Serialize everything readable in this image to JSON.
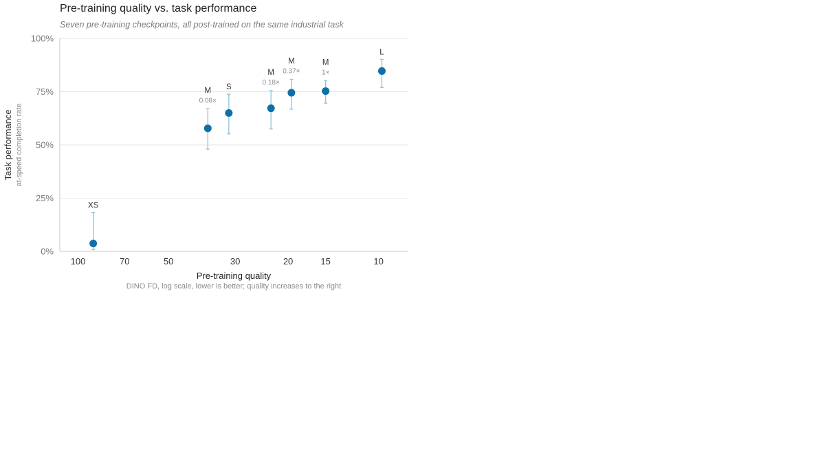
{
  "chart_data": {
    "type": "scatter",
    "title": "Pre-training quality vs. task performance",
    "subtitle": "Seven pre-training checkpoints, all post-trained on the same industrial task",
    "xlabel": "Pre-training quality",
    "xsublabel": "DINO FD, log scale, lower is better; quality increases to the right",
    "ylabel": "Task performance",
    "ysublabel": "at-speed completion rate",
    "x_scale": "log",
    "x_reversed": true,
    "xlim": [
      115,
      8
    ],
    "x_ticks": [
      100,
      70,
      50,
      30,
      20,
      15,
      10
    ],
    "x_tick_labels": [
      "100",
      "70",
      "50",
      "30",
      "20",
      "15",
      "10"
    ],
    "ylim": [
      0,
      100
    ],
    "y_ticks": [
      0,
      25,
      50,
      75,
      100
    ],
    "y_tick_labels": [
      "0%",
      "25%",
      "50%",
      "75%",
      "100%"
    ],
    "grid": "horizontal",
    "color": "#0f6fa8",
    "error_bar_color": "#8ec3de",
    "points": [
      {
        "label": "XS",
        "sublabel": "",
        "x": 89,
        "y": 3.7,
        "y_low": 0.8,
        "y_high": 18.2
      },
      {
        "label": "M",
        "sublabel": "0.08×",
        "x": 37,
        "y": 57.8,
        "y_low": 48.0,
        "y_high": 67.0
      },
      {
        "label": "S",
        "sublabel": "",
        "x": 31.5,
        "y": 65.0,
        "y_low": 55.2,
        "y_high": 73.8
      },
      {
        "label": "M",
        "sublabel": "0.18×",
        "x": 22.8,
        "y": 67.2,
        "y_low": 57.5,
        "y_high": 75.5
      },
      {
        "label": "M",
        "sublabel": "0.37×",
        "x": 19.5,
        "y": 74.5,
        "y_low": 66.8,
        "y_high": 80.8
      },
      {
        "label": "M",
        "sublabel": "1×",
        "x": 15,
        "y": 75.3,
        "y_low": 69.6,
        "y_high": 80.1
      },
      {
        "label": "L",
        "sublabel": "",
        "x": 9.75,
        "y": 84.7,
        "y_low": 77.0,
        "y_high": 90.2
      }
    ]
  }
}
